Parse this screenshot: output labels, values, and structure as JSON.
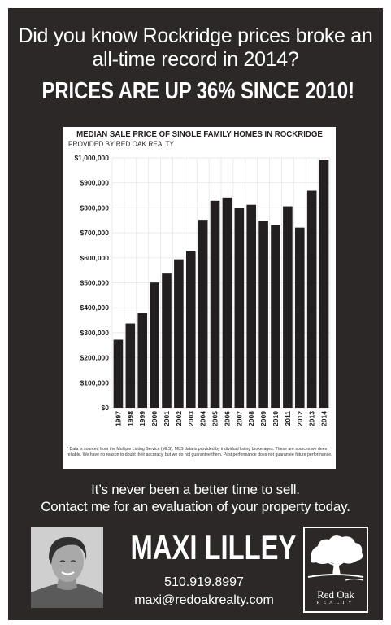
{
  "headline": "Did you know Rockridge prices broke an all-time record in 2014?",
  "banner": "PRICES ARE UP 36% SINCE 2010!",
  "chart_data": {
    "type": "bar",
    "title": "MEDIAN SALE PRICE OF SINGLE FAMILY HOMES IN ROCKRIDGE",
    "subtitle": "PROVIDED BY RED OAK REALTY",
    "xlabel": "",
    "ylabel": "",
    "ylim": [
      0,
      1000000
    ],
    "grid": true,
    "bar_color": "#231f20",
    "y_ticks": [
      0,
      100000,
      200000,
      300000,
      400000,
      500000,
      600000,
      700000,
      800000,
      900000,
      1000000
    ],
    "y_tick_labels": [
      "$0",
      "$100,000",
      "$200,000",
      "$300,000",
      "$400,000",
      "$500,000",
      "$600,000",
      "$700,000",
      "$800,000",
      "$900,000",
      "$1,000,000"
    ],
    "categories": [
      "1997",
      "1998",
      "1999",
      "2000",
      "2001",
      "2002",
      "2003",
      "2004",
      "2005",
      "2006",
      "2007",
      "2008",
      "2009",
      "2010",
      "2011",
      "2012",
      "2013",
      "2014"
    ],
    "values": [
      272000,
      337000,
      380000,
      501000,
      537000,
      594000,
      626000,
      752000,
      828000,
      841000,
      798000,
      812000,
      748000,
      731000,
      806000,
      721000,
      868000,
      992000
    ],
    "footnote": "* Data is sourced from the Multiple Listing Service (MLS). MLS data is provided by individual listing brokerages. These are sources we deem reliable. We have no reason to doubt their accuracy, but we do not guarantee them. Past performance does not guarantee future performance."
  },
  "cta": {
    "line1": "It’s never been a better time to sell.",
    "line2": "Contact me for an evaluation of your property today."
  },
  "agent": {
    "name": "MAXI LILLEY",
    "phone": "510.919.8997",
    "email": "maxi@redoakrealty.com"
  },
  "logo": {
    "word": "Red Oak",
    "sub": "REALTY"
  },
  "colors": {
    "background": "#2b2827",
    "text": "#ffffff",
    "chart_bg": "#ffffff",
    "grid": "#e3e3e3"
  }
}
